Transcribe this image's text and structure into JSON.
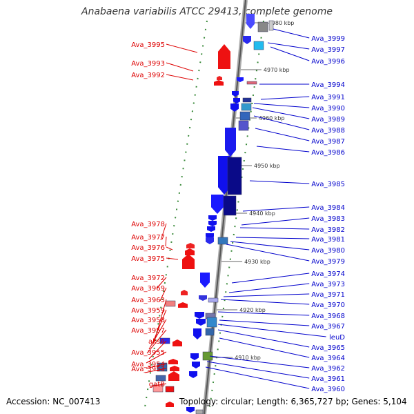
{
  "header": {
    "title": "Anabaena variabilis ATCC 29413, complete genome"
  },
  "footer": {
    "accession": "Accession: NC_007413",
    "summary": "Topology: circular; Length: 6,365,727 bp; Genes: 5,104"
  },
  "colors": {
    "forward_label": "#dd0000",
    "reverse_label": "#0000cc"
  },
  "ruler": [
    "4980 kbp",
    "4970 kbp",
    "4960 kbp",
    "4950 kbp",
    "4940 kbp",
    "4930 kbp",
    "4920 kbp",
    "4910 kbp"
  ],
  "genes_left": [
    "Ava_3995",
    "Ava_3993",
    "Ava_3992",
    "Ava_3978",
    "Ava_3977",
    "Ava_3976",
    "Ava_3975",
    "Ava_3972",
    "Ava_3969",
    "Ava_3963",
    "Ava_3959",
    "Ava_3958",
    "Ava_3957",
    "aksA",
    "Ava_3955",
    "Ava_3954",
    "Ava_3953",
    "gatB"
  ],
  "genes_right": [
    "Ava_3999",
    "Ava_3997",
    "Ava_3996",
    "Ava_3994",
    "Ava_3991",
    "Ava_3990",
    "Ava_3989",
    "Ava_3988",
    "Ava_3987",
    "Ava_3986",
    "Ava_3985",
    "Ava_3984",
    "Ava_3983",
    "Ava_3982",
    "Ava_3981",
    "Ava_3980",
    "Ava_3979",
    "Ava_3974",
    "Ava_3973",
    "Ava_3971",
    "Ava_3970",
    "Ava_3968",
    "Ava_3967",
    "leuD",
    "Ava_3965",
    "Ava_3964",
    "Ava_3962",
    "Ava_3961",
    "Ava_3960"
  ]
}
